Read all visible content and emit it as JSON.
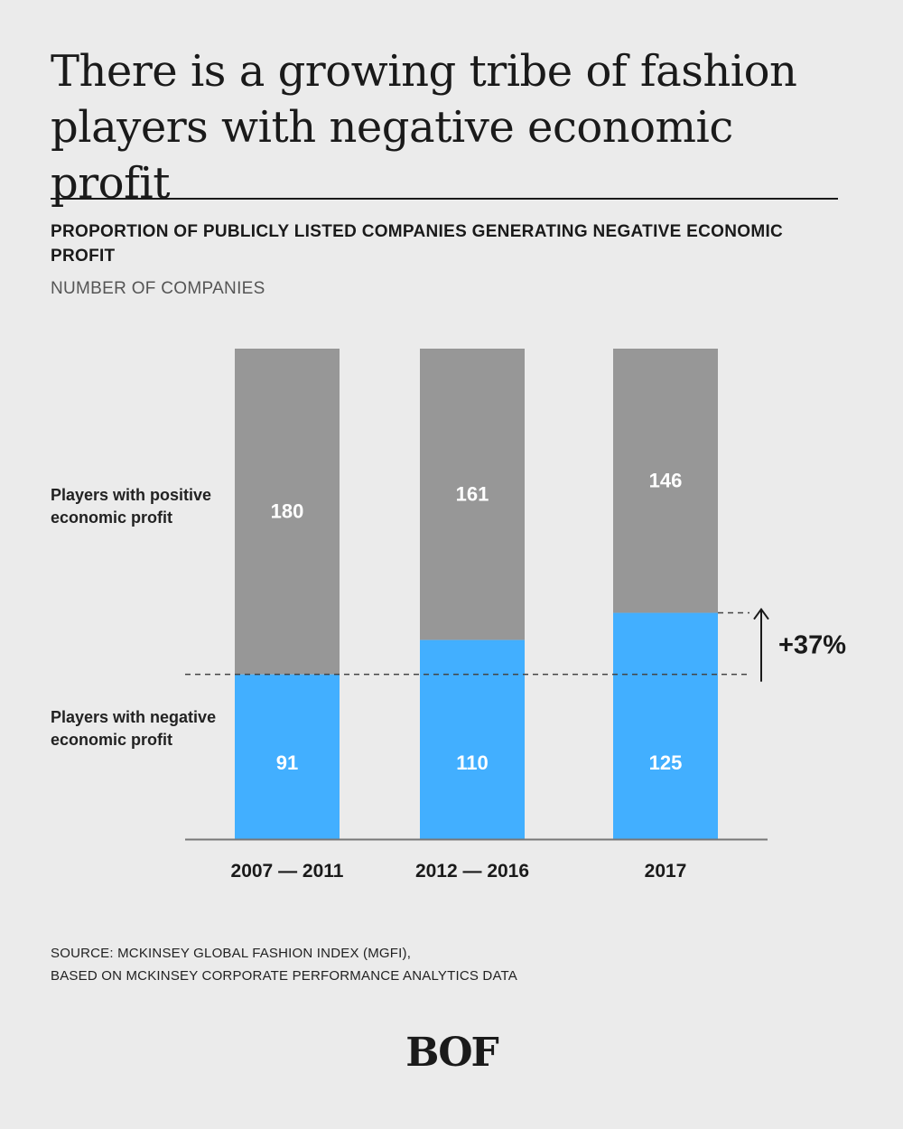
{
  "headline": "There is a growing tribe of fashion players with negative economic profit",
  "chart_data": {
    "type": "bar",
    "stacked": true,
    "title": "PROPORTION OF PUBLICLY LISTED COMPANIES GENERATING NEGATIVE ECONOMIC PROFIT",
    "unit_label": "NUMBER OF COMPANIES",
    "categories": [
      "2007 — 2011",
      "2012 — 2016",
      "2017"
    ],
    "series": [
      {
        "name": "Players with negative economic profit",
        "values": [
          91,
          110,
          125
        ],
        "color": "#42afff"
      },
      {
        "name": "Players with positive economic profit",
        "values": [
          180,
          161,
          146
        ],
        "color": "#979797"
      }
    ],
    "annotation": "+37%",
    "legend": {
      "positive_label": "Players with positive economic profit",
      "negative_label": "Players with negative economic profit"
    }
  },
  "source": {
    "line1": "SOURCE: MCKINSEY GLOBAL FASHION INDEX (MGFI),",
    "line2": "BASED ON MCKINSEY CORPORATE PERFORMANCE ANALYTICS DATA"
  },
  "logo_text": "BOF"
}
